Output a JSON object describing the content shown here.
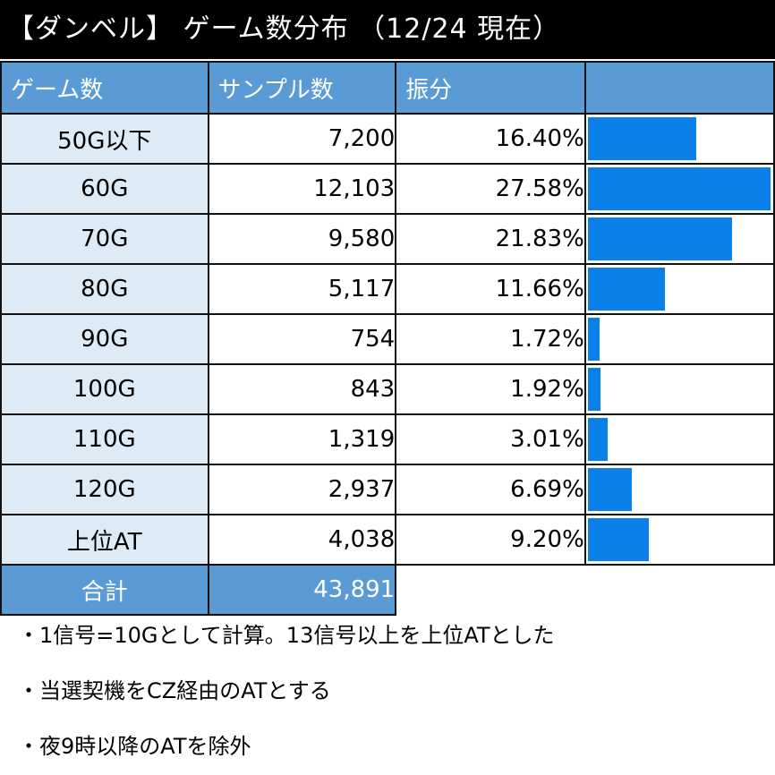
{
  "title": "【ダンベル】 ゲーム数分布 （12/24 現在）",
  "table": {
    "headers": [
      "ゲーム数",
      "サンプル数",
      "振分",
      ""
    ],
    "total_label": "合計",
    "total_value": "43,891"
  },
  "chart_data": {
    "type": "table",
    "columns": [
      "ゲーム数",
      "サンプル数",
      "振分"
    ],
    "rows": [
      {
        "game": "50G以下",
        "samples": "7,200",
        "ratio": "16.40%",
        "value": 16.4
      },
      {
        "game": "60G",
        "samples": "12,103",
        "ratio": "27.58%",
        "value": 27.58
      },
      {
        "game": "70G",
        "samples": "9,580",
        "ratio": "21.83%",
        "value": 21.83
      },
      {
        "game": "80G",
        "samples": "5,117",
        "ratio": "11.66%",
        "value": 11.66
      },
      {
        "game": "90G",
        "samples": "754",
        "ratio": "1.72%",
        "value": 1.72
      },
      {
        "game": "100G",
        "samples": "843",
        "ratio": "1.92%",
        "value": 1.92
      },
      {
        "game": "110G",
        "samples": "1,319",
        "ratio": "3.01%",
        "value": 3.01
      },
      {
        "game": "120G",
        "samples": "2,937",
        "ratio": "6.69%",
        "value": 6.69
      },
      {
        "game": "上位AT",
        "samples": "4,038",
        "ratio": "9.20%",
        "value": 9.2
      }
    ],
    "bar_max": 27.58,
    "bar_color": "#0a80e8"
  },
  "notes": [
    "・1信号=10Gとして計算。13信号以上を上位ATとした",
    "・当選契機をCZ経由のATとする",
    "・夜9時以降のATを除外"
  ]
}
